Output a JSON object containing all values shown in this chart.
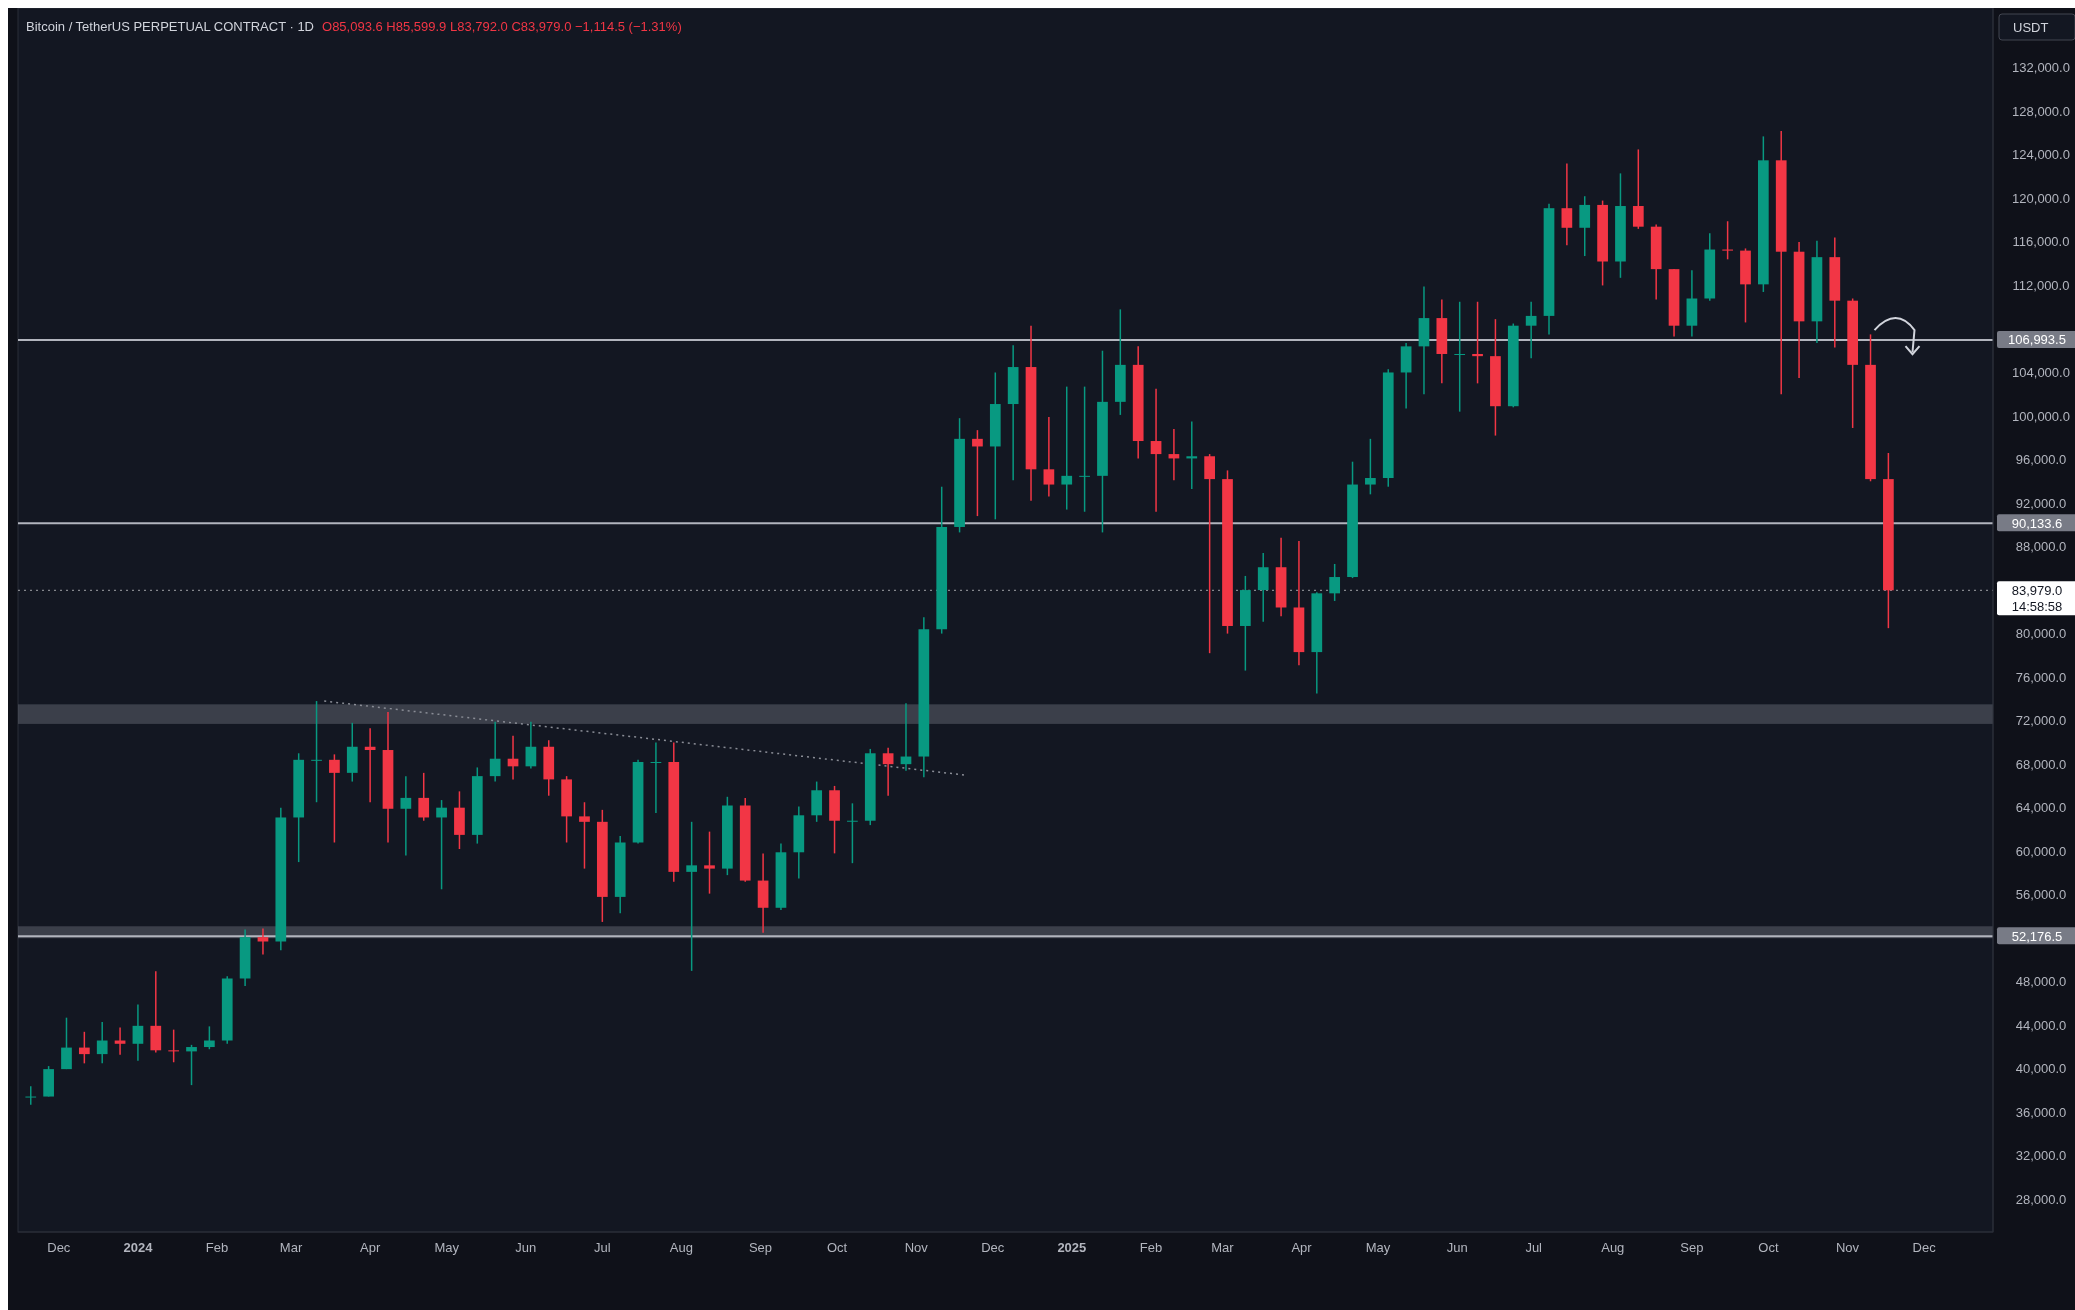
{
  "chart_data": {
    "type": "candlestick",
    "title": "Bitcoin / TetherUS PERPETUAL CONTRACT · 1D",
    "annotations": [
      "O85,093.6 H85,599.9 L83,792.0 C83,979.0 −1,114.5 (−1.31%)",
      "14:58:58"
    ],
    "ylabel": "USDT",
    "colors": [
      "#089981",
      "#089981",
      "#089981",
      "#f23645",
      "#089981",
      "#f23645",
      "#089981",
      "#f23645",
      "#f23645",
      "#089981",
      "#089981",
      "#089981",
      "#089981",
      "#f23645",
      "#089981",
      "#089981",
      "#089981",
      "#f23645",
      "#089981",
      "#f23645",
      "#f23645",
      "#089981",
      "#f23645",
      "#089981",
      "#f23645",
      "#089981",
      "#089981",
      "#f23645",
      "#089981",
      "#f23645",
      "#f23645",
      "#f23645",
      "#f23645",
      "#089981",
      "#089981",
      "#089981",
      "#f23645",
      "#089981",
      "#f23645",
      "#089981",
      "#f23645",
      "#f23645",
      "#089981",
      "#089981",
      "#089981",
      "#f23645",
      "#089981",
      "#089981",
      "#f23645",
      "#089981",
      "#089981",
      "#089981",
      "#089981",
      "#f23645",
      "#089981",
      "#089981",
      "#f23645",
      "#f23645",
      "#089981",
      "#089981",
      "#089981",
      "#089981",
      "#f23645",
      "#f23645",
      "#f23645",
      "#089981",
      "#f23645",
      "#f23645",
      "#089981",
      "#089981",
      "#f23645",
      "#f23645",
      "#089981",
      "#089981",
      "#089981",
      "#089981",
      "#089981",
      "#089981",
      "#089981",
      "#f23645",
      "#089981",
      "#f23645",
      "#f23645",
      "#089981",
      "#089981",
      "#089981",
      "#f23645",
      "#089981",
      "#f23645",
      "#089981",
      "#f23645",
      "#f23645",
      "#f23645",
      "#089981",
      "#089981",
      "#f23645",
      "#f23645",
      "#089981",
      "#f23645",
      "#f23645",
      "#089981",
      "#f23645",
      "#f23645",
      "#f23645",
      "#f23645"
    ],
    "x": [
      "2023-11-20",
      "2023-11-27",
      "2023-12-04",
      "2023-12-11",
      "2023-12-18",
      "2023-12-25",
      "2024-01-01",
      "2024-01-08",
      "2024-01-15",
      "2024-01-22",
      "2024-01-29",
      "2024-02-05",
      "2024-02-12",
      "2024-02-19",
      "2024-02-26",
      "2024-03-04",
      "2024-03-11",
      "2024-03-18",
      "2024-03-25",
      "2024-04-01",
      "2024-04-08",
      "2024-04-15",
      "2024-04-22",
      "2024-04-29",
      "2024-05-06",
      "2024-05-13",
      "2024-05-20",
      "2024-05-27",
      "2024-06-03",
      "2024-06-10",
      "2024-06-17",
      "2024-06-24",
      "2024-07-01",
      "2024-07-08",
      "2024-07-15",
      "2024-07-22",
      "2024-07-29",
      "2024-08-05",
      "2024-08-12",
      "2024-08-19",
      "2024-08-26",
      "2024-09-02",
      "2024-09-09",
      "2024-09-16",
      "2024-09-23",
      "2024-09-30",
      "2024-10-07",
      "2024-10-14",
      "2024-10-21",
      "2024-10-28",
      "2024-11-04",
      "2024-11-11",
      "2024-11-18",
      "2024-11-25",
      "2024-12-02",
      "2024-12-09",
      "2024-12-16",
      "2024-12-23",
      "2024-12-30",
      "2025-01-06",
      "2025-01-13",
      "2025-01-20",
      "2025-01-27",
      "2025-02-03",
      "2025-02-10",
      "2025-02-17",
      "2025-02-24",
      "2025-03-03",
      "2025-03-10",
      "2025-03-17",
      "2025-03-24",
      "2025-03-31",
      "2025-04-07",
      "2025-04-14",
      "2025-04-21",
      "2025-04-28",
      "2025-05-05",
      "2025-05-12",
      "2025-05-19",
      "2025-05-26",
      "2025-06-02",
      "2025-06-09",
      "2025-06-16",
      "2025-06-23",
      "2025-06-30",
      "2025-07-07",
      "2025-07-14",
      "2025-07-21",
      "2025-07-28",
      "2025-08-04",
      "2025-08-11",
      "2025-08-18",
      "2025-08-25",
      "2025-09-01",
      "2025-09-08",
      "2025-09-15",
      "2025-09-22",
      "2025-09-29",
      "2025-10-06",
      "2025-10-13",
      "2025-10-20",
      "2025-10-27",
      "2025-11-03",
      "2025-11-10",
      "2025-11-17"
    ],
    "ohlc": [
      [
        37450,
        38400,
        36700,
        37450
      ],
      [
        37450,
        40250,
        37450,
        39970
      ],
      [
        39970,
        44700,
        39970,
        41950
      ],
      [
        41950,
        43400,
        40500,
        41350
      ],
      [
        41350,
        44300,
        40500,
        42600
      ],
      [
        42600,
        43800,
        41300,
        42300
      ],
      [
        42300,
        45900,
        40750,
        43950
      ],
      [
        43950,
        48970,
        41500,
        41700
      ],
      [
        41700,
        43600,
        40600,
        41600
      ],
      [
        41600,
        42200,
        38500,
        42000
      ],
      [
        42000,
        43900,
        41800,
        42600
      ],
      [
        42600,
        48500,
        42300,
        48300
      ],
      [
        48300,
        52800,
        47600,
        52100
      ],
      [
        52100,
        52900,
        50500,
        51700
      ],
      [
        51700,
        64000,
        50900,
        63100
      ],
      [
        63100,
        69000,
        59000,
        68400
      ],
      [
        68400,
        73800,
        64500,
        68400
      ],
      [
        68400,
        68900,
        60800,
        67200
      ],
      [
        67200,
        71800,
        66400,
        69600
      ],
      [
        69600,
        71300,
        64500,
        69300
      ],
      [
        69300,
        72800,
        60800,
        63900
      ],
      [
        63900,
        66900,
        59600,
        64900
      ],
      [
        64900,
        67200,
        62800,
        63100
      ],
      [
        63100,
        64700,
        56500,
        64000
      ],
      [
        64000,
        65500,
        60200,
        61500
      ],
      [
        61500,
        67700,
        60700,
        66900
      ],
      [
        66900,
        71900,
        66400,
        68500
      ],
      [
        68500,
        70600,
        66600,
        67800
      ],
      [
        67800,
        71900,
        67600,
        69600
      ],
      [
        69600,
        70200,
        65100,
        66600
      ],
      [
        66600,
        66900,
        60800,
        63200
      ],
      [
        63200,
        64500,
        58400,
        62700
      ],
      [
        62700,
        63800,
        53500,
        55800
      ],
      [
        55800,
        61400,
        54300,
        60800
      ],
      [
        60800,
        68400,
        60700,
        68200
      ],
      [
        68200,
        70000,
        63500,
        68200
      ],
      [
        68200,
        70000,
        57200,
        58100
      ],
      [
        58100,
        62700,
        49000,
        58700
      ],
      [
        58700,
        61800,
        56100,
        58400
      ],
      [
        58400,
        65000,
        57800,
        64200
      ],
      [
        64200,
        64900,
        57200,
        57300
      ],
      [
        57300,
        59800,
        52500,
        54800
      ],
      [
        54800,
        60700,
        54600,
        59900
      ],
      [
        59900,
        64100,
        57500,
        63300
      ],
      [
        63300,
        66400,
        62700,
        65600
      ],
      [
        65600,
        66000,
        59800,
        62800
      ],
      [
        62800,
        64400,
        58900,
        62800
      ],
      [
        62800,
        69400,
        62400,
        69000
      ],
      [
        69000,
        69500,
        65100,
        68000
      ],
      [
        68000,
        73600,
        67400,
        68700
      ],
      [
        68700,
        81500,
        66800,
        80400
      ],
      [
        80400,
        93500,
        80000,
        89800
      ],
      [
        89800,
        99800,
        89300,
        97900
      ],
      [
        97900,
        98700,
        90800,
        97200
      ],
      [
        97200,
        104000,
        90500,
        101100
      ],
      [
        101100,
        106500,
        94100,
        104500
      ],
      [
        104500,
        108300,
        92200,
        95100
      ],
      [
        95100,
        99900,
        92600,
        93700
      ],
      [
        93700,
        102700,
        91400,
        94500
      ],
      [
        94500,
        102700,
        91200,
        94500
      ],
      [
        94500,
        106000,
        89300,
        101300
      ],
      [
        101300,
        109800,
        100100,
        104700
      ],
      [
        104700,
        106400,
        96100,
        97700
      ],
      [
        97700,
        102500,
        91200,
        96500
      ],
      [
        96500,
        98800,
        94100,
        96100
      ],
      [
        96100,
        99500,
        93300,
        96300
      ],
      [
        96300,
        96500,
        78200,
        94200
      ],
      [
        94200,
        95000,
        80000,
        80700
      ],
      [
        80700,
        85300,
        76600,
        84000
      ],
      [
        84000,
        87400,
        81100,
        86100
      ],
      [
        86100,
        88800,
        81600,
        82400
      ],
      [
        82400,
        88500,
        77100,
        78300
      ],
      [
        78300,
        83800,
        74500,
        83700
      ],
      [
        83700,
        86400,
        83000,
        85200
      ],
      [
        85200,
        95800,
        85100,
        93700
      ],
      [
        93700,
        97900,
        92800,
        94300
      ],
      [
        94300,
        104300,
        93500,
        104000
      ],
      [
        104000,
        106700,
        100700,
        106400
      ],
      [
        106400,
        111900,
        102000,
        109000
      ],
      [
        109000,
        110700,
        103000,
        105700
      ],
      [
        105700,
        110500,
        100400,
        105700
      ],
      [
        105700,
        110500,
        103000,
        105500
      ],
      [
        105500,
        108900,
        98200,
        100900
      ],
      [
        100900,
        108500,
        100800,
        108300
      ],
      [
        108300,
        110500,
        105300,
        109200
      ],
      [
        109200,
        119500,
        107500,
        119100
      ],
      [
        119100,
        123200,
        115700,
        117300
      ],
      [
        117300,
        120200,
        114700,
        119400
      ],
      [
        119400,
        119800,
        112000,
        114200
      ],
      [
        114200,
        122300,
        112700,
        119300
      ],
      [
        119300,
        124500,
        117200,
        117400
      ],
      [
        117400,
        117600,
        110700,
        113500
      ],
      [
        113500,
        113500,
        107300,
        108300
      ],
      [
        108300,
        113400,
        107300,
        110800
      ],
      [
        110800,
        116800,
        110600,
        115300
      ],
      [
        115300,
        117900,
        114400,
        115200
      ],
      [
        115200,
        115400,
        108600,
        112100
      ],
      [
        112100,
        125700,
        111400,
        123500
      ],
      [
        123500,
        126200,
        102000,
        115100
      ],
      [
        115100,
        116000,
        103500,
        108700
      ],
      [
        108700,
        116100,
        106700,
        114600
      ],
      [
        114600,
        116400,
        106300,
        110600
      ],
      [
        110600,
        110800,
        98900,
        104700
      ],
      [
        104700,
        107500,
        94000,
        94200
      ],
      [
        94200,
        96600,
        80500,
        83979
      ]
    ],
    "series": [
      {
        "type": "line",
        "x": [
          "2024-03-14",
          "2024-11-20"
        ],
        "values": [
          73800,
          67000
        ],
        "color": "#8a8d96",
        "line_style": "dotted",
        "marker": "none"
      }
    ],
    "xlim": [
      "2023-11-15",
      "2025-12-28"
    ],
    "xticks": [
      {
        "value": "2023-12-01",
        "label": "Dec"
      },
      {
        "value": "2024-01-01",
        "label": "2024"
      },
      {
        "value": "2024-02-01",
        "label": "Feb"
      },
      {
        "value": "2024-03-01",
        "label": "Mar"
      },
      {
        "value": "2024-04-01",
        "label": "Apr"
      },
      {
        "value": "2024-05-01",
        "label": "May"
      },
      {
        "value": "2024-06-01",
        "label": "Jun"
      },
      {
        "value": "2024-07-01",
        "label": "Jul"
      },
      {
        "value": "2024-08-01",
        "label": "Aug"
      },
      {
        "value": "2024-09-01",
        "label": "Sep"
      },
      {
        "value": "2024-10-01",
        "label": "Oct"
      },
      {
        "value": "2024-11-01",
        "label": "Nov"
      },
      {
        "value": "2024-12-01",
        "label": "Dec"
      },
      {
        "value": "2025-01-01",
        "label": "2025"
      },
      {
        "value": "2025-02-01",
        "label": "Feb"
      },
      {
        "value": "2025-03-01",
        "label": "Mar"
      },
      {
        "value": "2025-04-01",
        "label": "Apr"
      },
      {
        "value": "2025-05-01",
        "label": "May"
      },
      {
        "value": "2025-06-01",
        "label": "Jun"
      },
      {
        "value": "2025-07-01",
        "label": "Jul"
      },
      {
        "value": "2025-08-01",
        "label": "Aug"
      },
      {
        "value": "2025-09-01",
        "label": "Sep"
      },
      {
        "value": "2025-10-01",
        "label": "Oct"
      },
      {
        "value": "2025-11-01",
        "label": "Nov"
      },
      {
        "value": "2025-12-01",
        "label": "Dec"
      }
    ],
    "ylim": [
      25000,
      137500
    ],
    "yticks": [
      {
        "value": 28000,
        "label": "28,000.0"
      },
      {
        "value": 32000,
        "label": "32,000.0"
      },
      {
        "value": 36000,
        "label": "36,000.0"
      },
      {
        "value": 40000,
        "label": "40,000.0"
      },
      {
        "value": 44000,
        "label": "44,000.0"
      },
      {
        "value": 48000,
        "label": "48,000.0"
      },
      {
        "value": 56000,
        "label": "56,000.0"
      },
      {
        "value": 60000,
        "label": "60,000.0"
      },
      {
        "value": 64000,
        "label": "64,000.0"
      },
      {
        "value": 68000,
        "label": "68,000.0"
      },
      {
        "value": 72000,
        "label": "72,000.0"
      },
      {
        "value": 76000,
        "label": "76,000.0"
      },
      {
        "value": 80000,
        "label": "80,000.0"
      },
      {
        "value": 88000,
        "label": "88,000.0"
      },
      {
        "value": 92000,
        "label": "92,000.0"
      },
      {
        "value": 96000,
        "label": "96,000.0"
      },
      {
        "value": 100000,
        "label": "100,000.0"
      },
      {
        "value": 104000,
        "label": "104,000.0"
      },
      {
        "value": 112000,
        "label": "112,000.0"
      },
      {
        "value": 116000,
        "label": "116,000.0"
      },
      {
        "value": 120000,
        "label": "120,000.0"
      },
      {
        "value": 124000,
        "label": "124,000.0"
      },
      {
        "value": 128000,
        "label": "128,000.0"
      },
      {
        "value": 132000,
        "label": "132,000.0"
      }
    ],
    "ref_lines": [
      {
        "axis": "y",
        "value": 106993.5,
        "label": "106,993.5",
        "color": "#b2b5be",
        "line_style": "solid"
      },
      {
        "axis": "y",
        "value": 90133.6,
        "label": "90,133.6",
        "color": "#b2b5be",
        "line_style": "solid"
      },
      {
        "axis": "y",
        "value": 52176.5,
        "label": "52,176.5",
        "color": "#b2b5be",
        "line_style": "solid"
      },
      {
        "axis": "y",
        "value": 83979,
        "label": "83,979.0",
        "color": "#ffffff",
        "line_style": "dotted"
      }
    ],
    "bands": [
      {
        "axis": "y",
        "from": 71700,
        "to": 73500,
        "color": "#5d606b"
      },
      {
        "axis": "y",
        "from": 52000,
        "to": 53100,
        "color": "#5d606b"
      }
    ],
    "grid": false
  }
}
